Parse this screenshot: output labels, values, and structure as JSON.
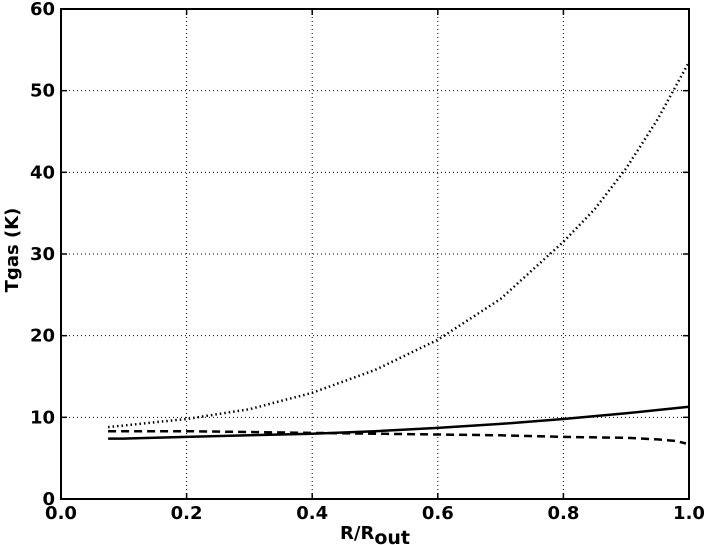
{
  "chart_data": {
    "type": "line",
    "title": "",
    "xlabel": "R/R",
    "xlabel_sub": "out",
    "ylabel": "Tgas (K)",
    "xlim": [
      0.0,
      1.0
    ],
    "ylim": [
      0,
      60
    ],
    "grid": true,
    "xticks": [
      0.0,
      0.2,
      0.4,
      0.6,
      0.8,
      1.0
    ],
    "xtick_labels": [
      "0.0",
      "0.2",
      "0.4",
      "0.6",
      "0.8",
      "1.0"
    ],
    "yticks": [
      0,
      10,
      20,
      30,
      40,
      50,
      60
    ],
    "ytick_labels": [
      "0",
      "10",
      "20",
      "30",
      "40",
      "50",
      "60"
    ],
    "series": [
      {
        "style": "solid",
        "x": [
          0.075,
          0.1,
          0.2,
          0.3,
          0.4,
          0.5,
          0.6,
          0.7,
          0.8,
          0.9,
          1.0
        ],
        "y": [
          7.4,
          7.4,
          7.6,
          7.8,
          8.0,
          8.3,
          8.7,
          9.2,
          9.8,
          10.5,
          11.3
        ]
      },
      {
        "style": "dashed",
        "x": [
          0.075,
          0.1,
          0.2,
          0.3,
          0.4,
          0.5,
          0.6,
          0.7,
          0.8,
          0.9,
          0.95,
          0.98,
          0.995
        ],
        "y": [
          8.3,
          8.3,
          8.3,
          8.2,
          8.1,
          8.0,
          7.9,
          7.8,
          7.6,
          7.5,
          7.3,
          7.1,
          6.8
        ]
      },
      {
        "style": "dotted",
        "x": [
          0.075,
          0.1,
          0.2,
          0.3,
          0.4,
          0.5,
          0.6,
          0.7,
          0.8,
          0.85,
          0.9,
          0.95,
          1.0
        ],
        "y": [
          8.8,
          9.0,
          9.8,
          11.0,
          13.0,
          15.8,
          19.5,
          24.5,
          31.5,
          35.5,
          40.5,
          46.5,
          53.5
        ]
      }
    ]
  }
}
